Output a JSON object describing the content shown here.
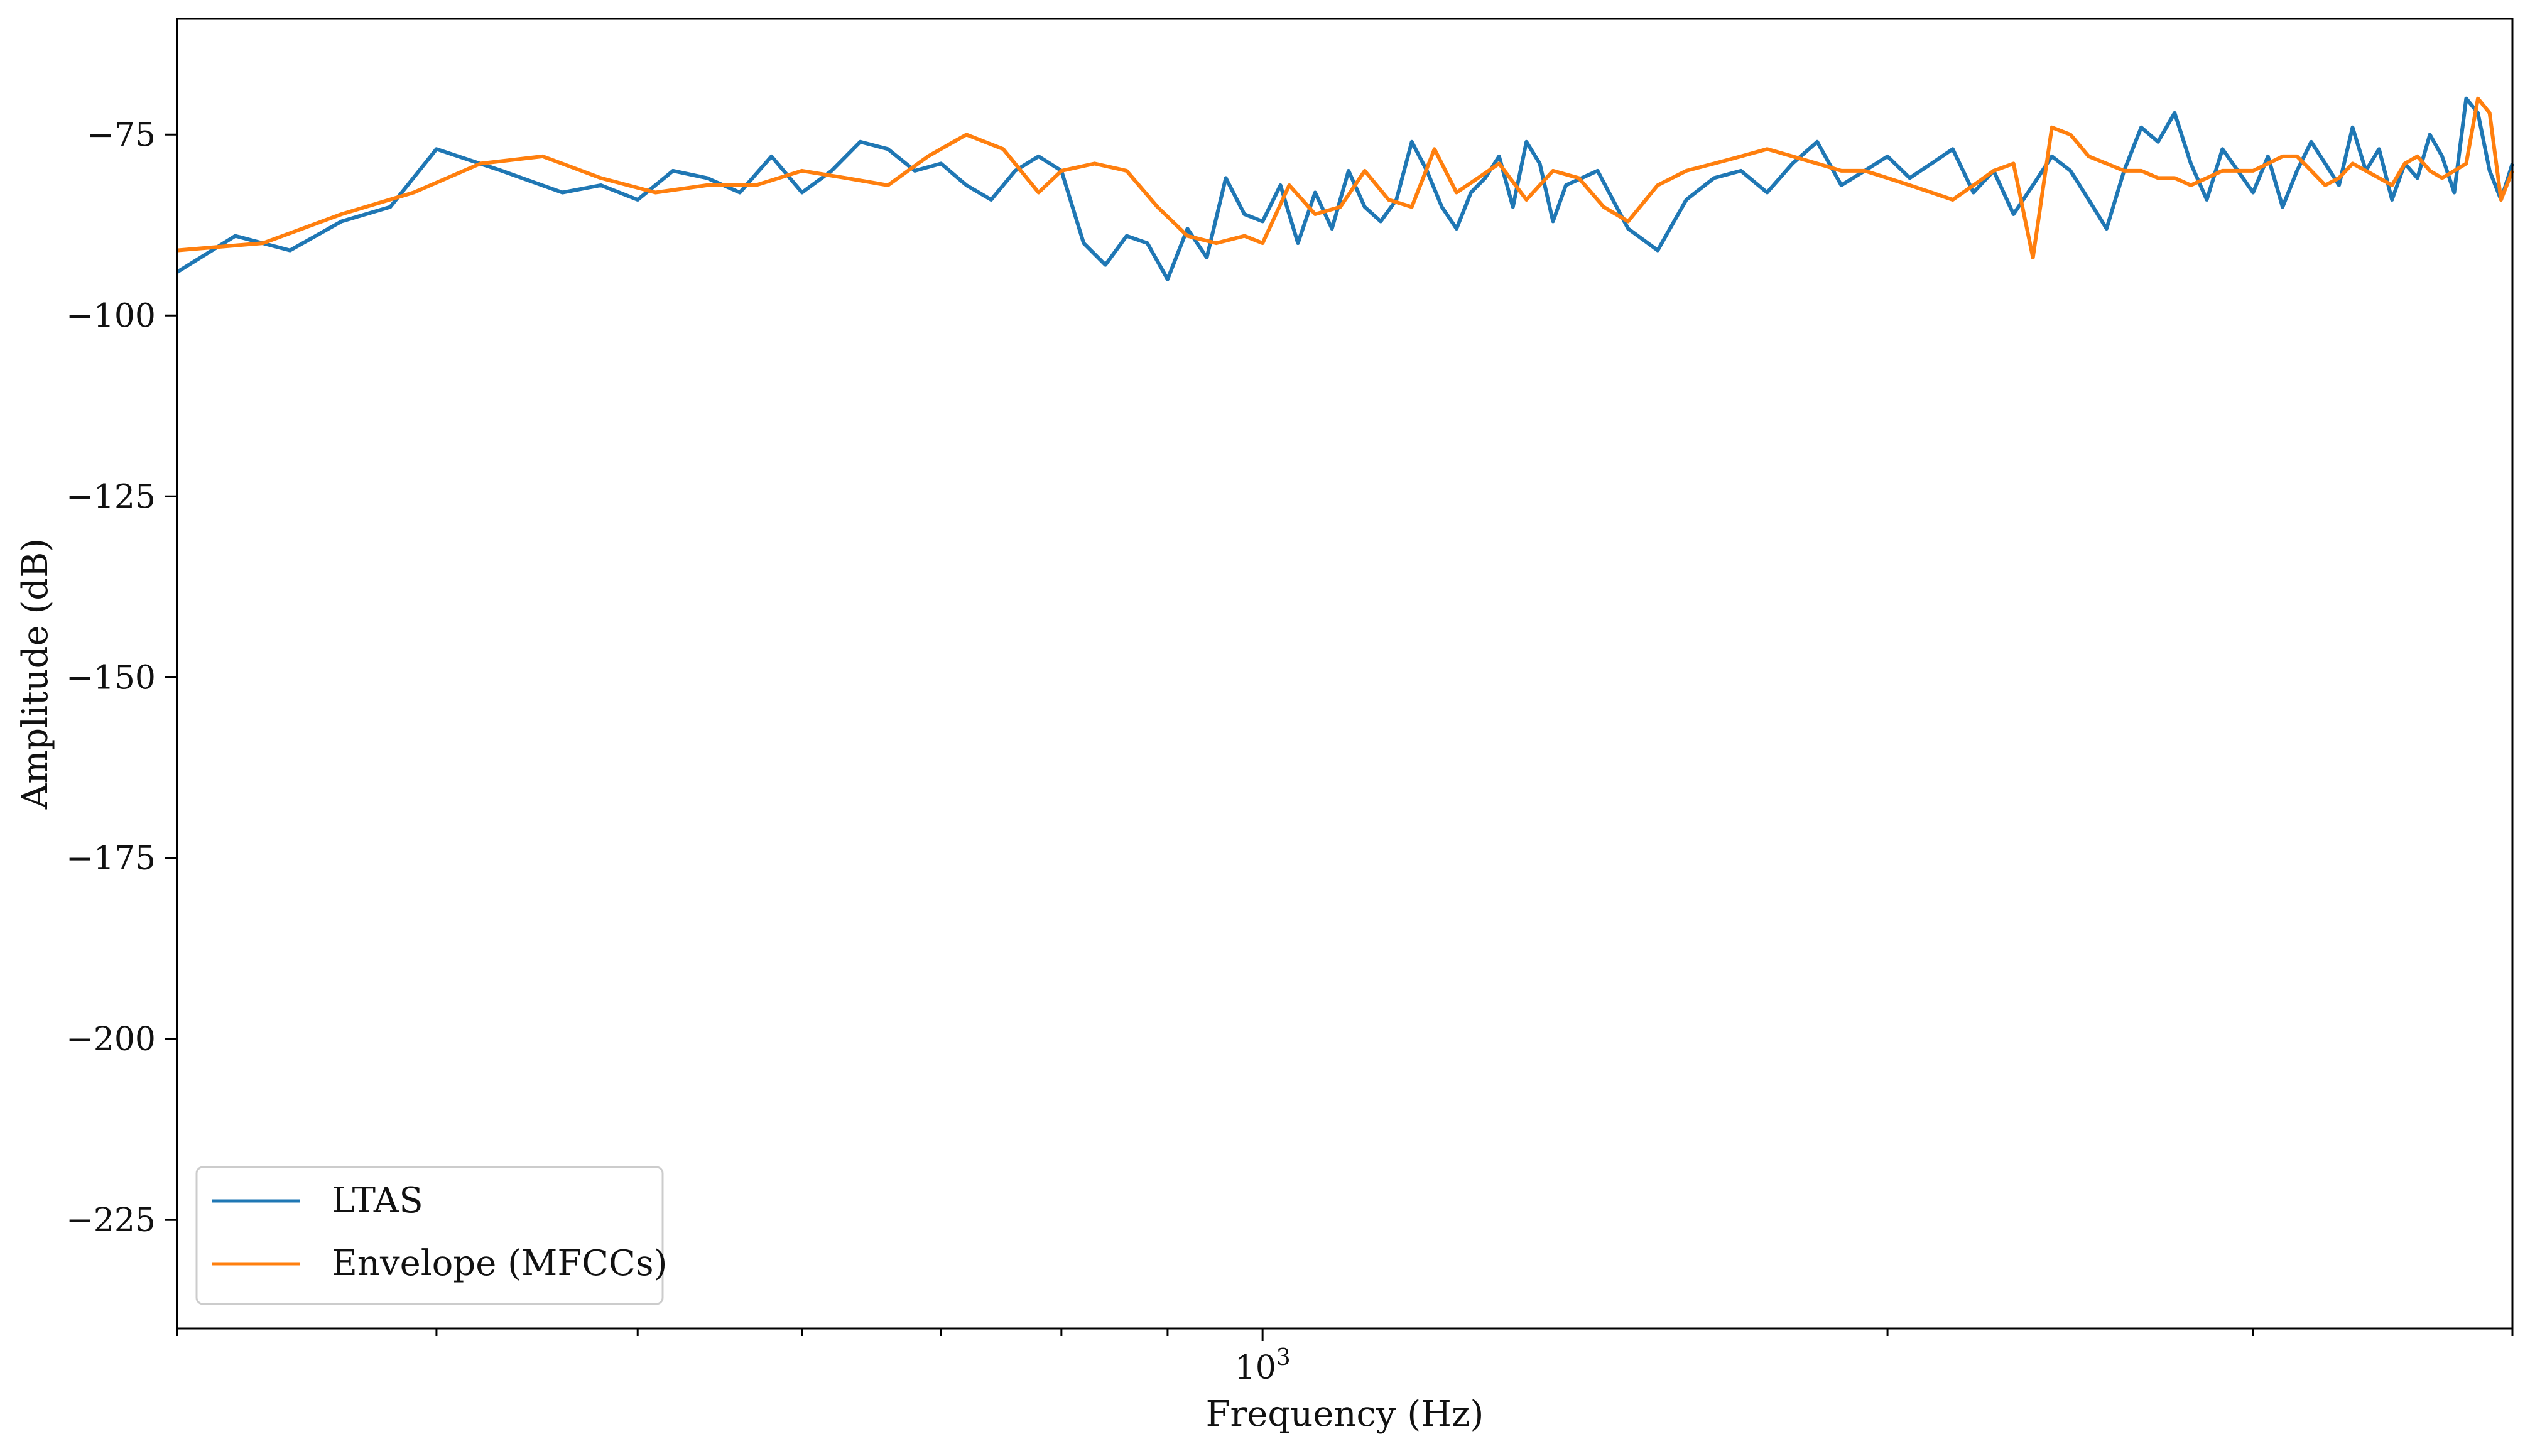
{
  "chart_data": {
    "type": "line",
    "title": "",
    "xlabel": "Frequency (Hz)",
    "ylabel": "Amplitude (dB)",
    "xscale": "log",
    "xlim": [
      300,
      4000
    ],
    "ylim": [
      -240,
      -59
    ],
    "x_tick_labels": [
      {
        "value": 1000,
        "base": "10",
        "exponent": "3"
      }
    ],
    "y_ticks": [
      -75,
      -100,
      -125,
      -150,
      -175,
      -200,
      -225
    ],
    "y_tick_labels": [
      "−75",
      "−100",
      "−125",
      "−150",
      "−175",
      "−200",
      "−225"
    ],
    "grid": false,
    "legend": {
      "placement": "lower-left",
      "entries": [
        "LTAS",
        "Envelope (MFCCs)"
      ]
    },
    "colors": {
      "LTAS": "#1f77b4",
      "Envelope (MFCCs)": "#ff7f0e"
    },
    "series": [
      {
        "name": "LTAS",
        "x": [
          300,
          320,
          340,
          360,
          380,
          400,
          430,
          460,
          480,
          500,
          520,
          540,
          560,
          580,
          600,
          620,
          640,
          660,
          680,
          700,
          720,
          740,
          760,
          780,
          800,
          820,
          840,
          860,
          880,
          900,
          920,
          940,
          960,
          980,
          1000,
          1020,
          1040,
          1060,
          1080,
          1100,
          1120,
          1140,
          1160,
          1180,
          1200,
          1220,
          1240,
          1260,
          1280,
          1300,
          1320,
          1340,
          1360,
          1380,
          1400,
          1450,
          1500,
          1550,
          1600,
          1650,
          1700,
          1750,
          1800,
          1850,
          1900,
          1950,
          2000,
          2050,
          2100,
          2150,
          2200,
          2250,
          2300,
          2350,
          2400,
          2450,
          2500,
          2550,
          2600,
          2650,
          2700,
          2750,
          2800,
          2850,
          2900,
          2950,
          3000,
          3050,
          3100,
          3150,
          3200,
          3250,
          3300,
          3350,
          3400,
          3450,
          3500,
          3550,
          3600,
          3650,
          3700,
          3750,
          3800,
          3850,
          3900,
          3950,
          4000
        ],
        "y": [
          -94,
          -89,
          -91,
          -87,
          -85,
          -77,
          -80,
          -83,
          -82,
          -84,
          -80,
          -81,
          -83,
          -78,
          -83,
          -80,
          -76,
          -77,
          -80,
          -79,
          -82,
          -84,
          -80,
          -78,
          -80,
          -90,
          -93,
          -89,
          -90,
          -95,
          -88,
          -92,
          -81,
          -86,
          -87,
          -82,
          -90,
          -83,
          -88,
          -80,
          -85,
          -87,
          -84,
          -76,
          -80,
          -85,
          -88,
          -83,
          -81,
          -78,
          -85,
          -76,
          -79,
          -87,
          -82,
          -80,
          -88,
          -91,
          -84,
          -81,
          -80,
          -83,
          -79,
          -76,
          -82,
          -80,
          -78,
          -81,
          -79,
          -77,
          -83,
          -80,
          -86,
          -82,
          -78,
          -80,
          -84,
          -88,
          -80,
          -74,
          -76,
          -72,
          -79,
          -84,
          -77,
          -80,
          -83,
          -78,
          -85,
          -80,
          -76,
          -79,
          -82,
          -74,
          -80,
          -77,
          -84,
          -79,
          -81,
          -75,
          -78,
          -83,
          -70,
          -72,
          -80,
          -84,
          -79
        ]
      },
      {
        "name": "Envelope (MFCCs)",
        "x": [
          300,
          330,
          360,
          390,
          420,
          450,
          480,
          510,
          540,
          570,
          600,
          630,
          660,
          690,
          720,
          750,
          780,
          800,
          830,
          860,
          890,
          920,
          950,
          980,
          1000,
          1030,
          1060,
          1090,
          1120,
          1150,
          1180,
          1210,
          1240,
          1270,
          1300,
          1340,
          1380,
          1420,
          1460,
          1500,
          1550,
          1600,
          1650,
          1700,
          1750,
          1800,
          1850,
          1900,
          1950,
          2000,
          2050,
          2100,
          2150,
          2200,
          2250,
          2300,
          2350,
          2400,
          2450,
          2500,
          2550,
          2600,
          2650,
          2700,
          2750,
          2800,
          2850,
          2900,
          2950,
          3000,
          3050,
          3100,
          3150,
          3200,
          3250,
          3300,
          3350,
          3400,
          3450,
          3500,
          3550,
          3600,
          3650,
          3700,
          3750,
          3800,
          3850,
          3900,
          3950,
          4000
        ],
        "y": [
          -91,
          -90,
          -86,
          -83,
          -79,
          -78,
          -81,
          -83,
          -82,
          -82,
          -80,
          -81,
          -82,
          -78,
          -75,
          -77,
          -83,
          -80,
          -79,
          -80,
          -85,
          -89,
          -90,
          -89,
          -90,
          -82,
          -86,
          -85,
          -80,
          -84,
          -85,
          -77,
          -83,
          -81,
          -79,
          -84,
          -80,
          -81,
          -85,
          -87,
          -82,
          -80,
          -79,
          -78,
          -77,
          -78,
          -79,
          -80,
          -80,
          -81,
          -82,
          -83,
          -84,
          -82,
          -80,
          -79,
          -92,
          -74,
          -75,
          -78,
          -79,
          -80,
          -80,
          -81,
          -81,
          -82,
          -81,
          -80,
          -80,
          -80,
          -79,
          -78,
          -78,
          -80,
          -82,
          -81,
          -79,
          -80,
          -81,
          -82,
          -79,
          -78,
          -80,
          -81,
          -80,
          -79,
          -70,
          -72,
          -84,
          -80
        ]
      }
    ]
  }
}
